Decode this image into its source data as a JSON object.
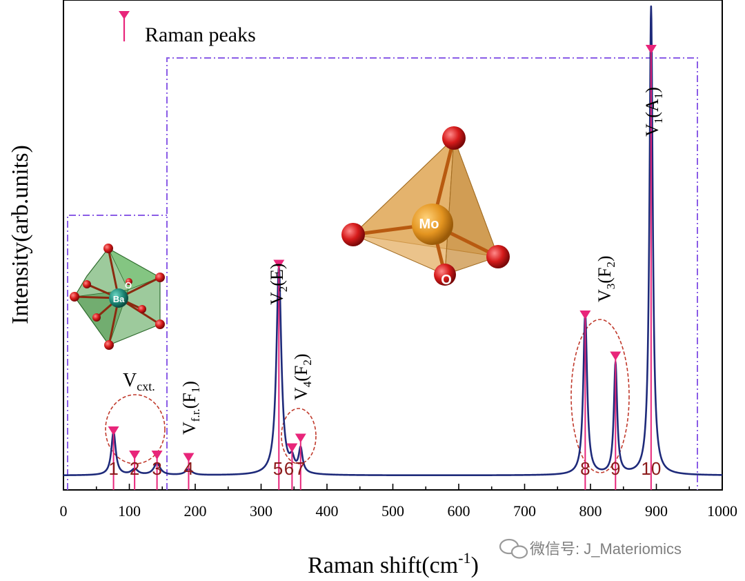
{
  "chart_data": {
    "type": "line",
    "xlabel": "Raman shift(cm",
    "xlabel_sup": "-1",
    "xlabel_close": ")",
    "ylabel": "Intensity(arb.units)",
    "xlim": [
      0,
      1000
    ],
    "ylim": [
      0,
      100
    ],
    "xticks": [
      0,
      100,
      200,
      300,
      400,
      500,
      600,
      700,
      800,
      900,
      1000
    ],
    "grid": false,
    "legend": {
      "label": "Raman peaks",
      "placement": "top-left"
    },
    "baseline": 3,
    "series": [
      {
        "name": "Raman spectrum",
        "color": "#1e2a7a",
        "peaks": [
          {
            "center": 76,
            "height": 9,
            "width": 4
          },
          {
            "center": 108,
            "height": 1.2,
            "width": 6
          },
          {
            "center": 142,
            "height": 2.4,
            "width": 6
          },
          {
            "center": 190,
            "height": 1.2,
            "width": 6
          },
          {
            "center": 327,
            "height": 43,
            "width": 4.5
          },
          {
            "center": 347,
            "height": 2.5,
            "width": 4
          },
          {
            "center": 360,
            "height": 5,
            "width": 3.5
          },
          {
            "center": 792,
            "height": 33.5,
            "width": 3.5
          },
          {
            "center": 838,
            "height": 23,
            "width": 3
          },
          {
            "center": 892,
            "height": 97,
            "width": 3
          }
        ]
      }
    ],
    "markers": [
      {
        "x": 76,
        "y": 12,
        "label": "1"
      },
      {
        "x": 108,
        "y": 7,
        "label": "2"
      },
      {
        "x": 142,
        "y": 7,
        "label": "3"
      },
      {
        "x": 190,
        "y": 6.5,
        "label": "4"
      },
      {
        "x": 327,
        "y": 46.5,
        "label": "5"
      },
      {
        "x": 347,
        "y": 8.5,
        "label": "6"
      },
      {
        "x": 360,
        "y": 10.5,
        "label": "7"
      },
      {
        "x": 792,
        "y": 36,
        "label": "8"
      },
      {
        "x": 838,
        "y": 27.5,
        "label": "9"
      },
      {
        "x": 892,
        "y": 91,
        "label": "10"
      }
    ],
    "mode_labels": [
      {
        "main": "V",
        "sub": "cxt."
      },
      {
        "main": "V",
        "sub": "f.r.",
        "suffix": "(F",
        "suffix_sub": "1",
        "close": ")"
      },
      {
        "main": "V",
        "sub": "2",
        "suffix": "(E)"
      },
      {
        "main": "V",
        "sub": "4",
        "suffix": "(F",
        "suffix_sub": "2",
        "close": ")"
      },
      {
        "main": "V",
        "sub": "3",
        "suffix": "(F",
        "suffix_sub": "2",
        "close": ")"
      },
      {
        "main": "V",
        "sub": "1",
        "suffix": "(A",
        "suffix_sub": "1",
        "close": ")"
      }
    ],
    "structure_labels": {
      "mo": "Mo",
      "o_mo": "O",
      "ba": "Ba",
      "o_ba": "O"
    },
    "colors": {
      "line": "#1e2a7a",
      "marker": "#e8257a",
      "dashdot_box": "#8a5ce6",
      "ellipse": "#c0392b",
      "peak_number": "#8b1a1a",
      "tetrahedron": "#d29a46",
      "polyhedron": "#4c9e4a",
      "atom_o": "#d61b1b",
      "atom_mo": "#e39420",
      "atom_ba": "#1e8a78"
    }
  },
  "watermark": "微信号: J_Materiomics"
}
